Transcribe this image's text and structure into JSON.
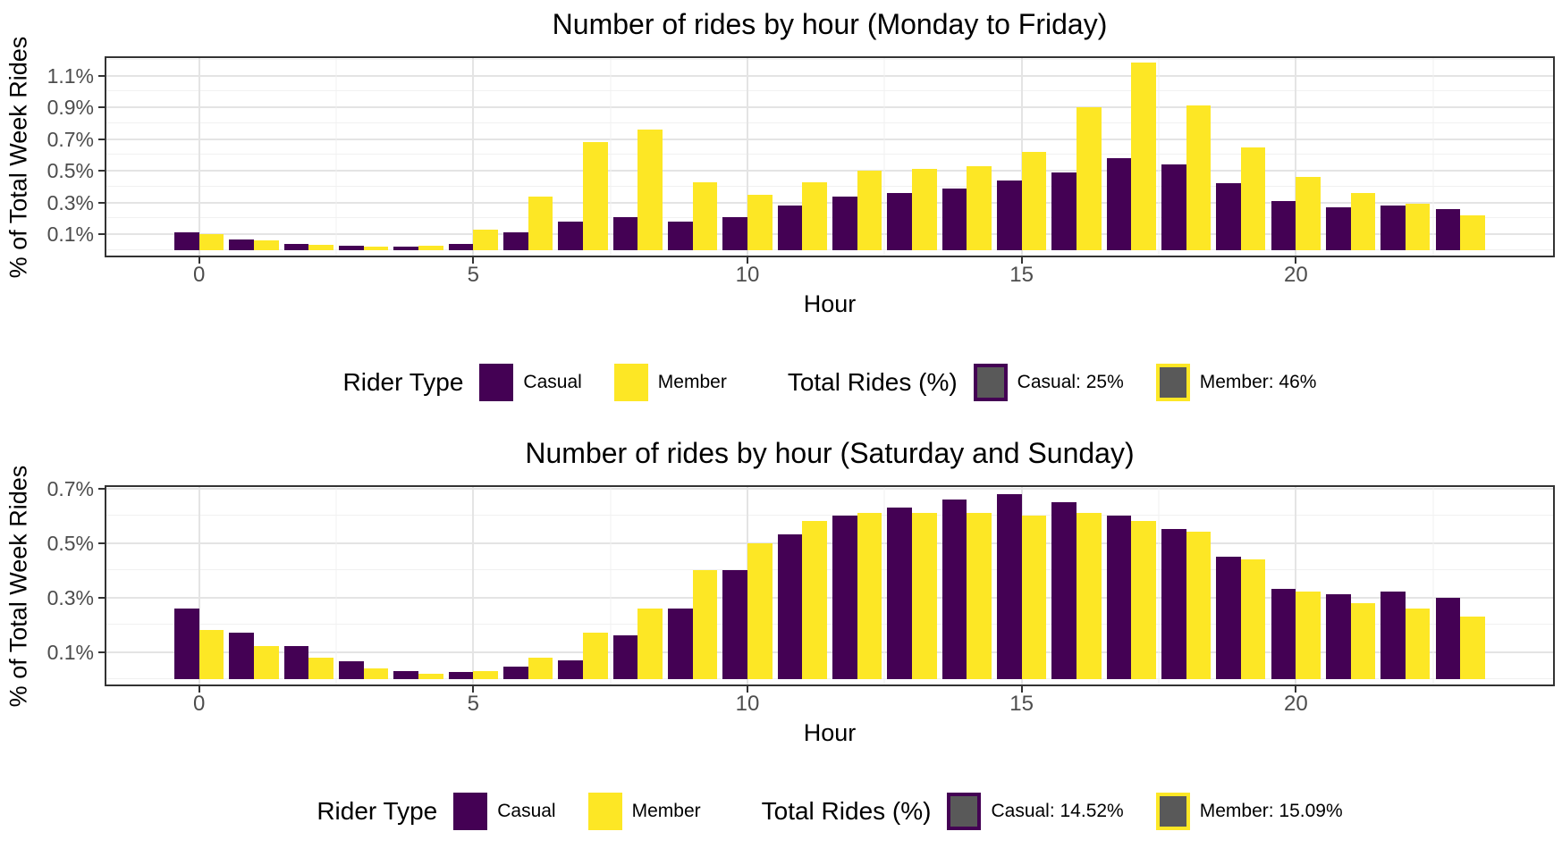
{
  "colors": {
    "casual": "#440154",
    "member": "#FDE725",
    "legend_swatch_fill": "#595959",
    "grid_major": "#e4e4e4",
    "grid_minor": "#f1f1f1",
    "panel_border": "#333333",
    "axis_text": "#4d4d4d",
    "title_text": "#000000"
  },
  "chart_data": [
    {
      "type": "bar",
      "title": "Number of rides by hour (Monday to Friday)",
      "xlabel": "Hour",
      "ylabel": "% of Total Week Rides",
      "x": [
        0,
        1,
        2,
        3,
        4,
        5,
        6,
        7,
        8,
        9,
        10,
        11,
        12,
        13,
        14,
        15,
        16,
        17,
        18,
        19,
        20,
        21,
        22,
        23
      ],
      "x_ticks": [
        0,
        5,
        10,
        15,
        20
      ],
      "y_ticks": [
        0.1,
        0.3,
        0.5,
        0.7,
        0.9,
        1.1
      ],
      "y_unit": "%",
      "ylim": [
        0,
        1.21
      ],
      "grid": true,
      "legend_position": "bottom",
      "series": [
        {
          "name": "Casual",
          "values": [
            0.11,
            0.07,
            0.04,
            0.03,
            0.025,
            0.04,
            0.11,
            0.18,
            0.21,
            0.18,
            0.21,
            0.28,
            0.34,
            0.36,
            0.39,
            0.44,
            0.49,
            0.58,
            0.54,
            0.42,
            0.31,
            0.27,
            0.28,
            0.26
          ]
        },
        {
          "name": "Member",
          "values": [
            0.1,
            0.06,
            0.035,
            0.025,
            0.03,
            0.13,
            0.34,
            0.68,
            0.76,
            0.43,
            0.35,
            0.43,
            0.5,
            0.51,
            0.53,
            0.62,
            0.9,
            1.18,
            0.91,
            0.65,
            0.46,
            0.36,
            0.29,
            0.22
          ]
        }
      ],
      "legend": {
        "rider_type_title": "Rider Type",
        "casual_label": "Casual",
        "member_label": "Member",
        "total_title": "Total Rides (%)",
        "total_casual_label": "Casual: 25%",
        "total_member_label": "Member: 46%"
      }
    },
    {
      "type": "bar",
      "title": "Number of rides by hour (Saturday and Sunday)",
      "xlabel": "Hour",
      "ylabel": "% of Total Week Rides",
      "x": [
        0,
        1,
        2,
        3,
        4,
        5,
        6,
        7,
        8,
        9,
        10,
        11,
        12,
        13,
        14,
        15,
        16,
        17,
        18,
        19,
        20,
        21,
        22,
        23
      ],
      "x_ticks": [
        0,
        5,
        10,
        15,
        20
      ],
      "y_ticks": [
        0.1,
        0.3,
        0.5,
        0.7
      ],
      "y_unit": "%",
      "ylim": [
        0,
        0.705
      ],
      "grid": true,
      "legend_position": "bottom",
      "series": [
        {
          "name": "Casual",
          "values": [
            0.26,
            0.17,
            0.12,
            0.065,
            0.03,
            0.025,
            0.045,
            0.07,
            0.16,
            0.26,
            0.4,
            0.53,
            0.6,
            0.63,
            0.66,
            0.68,
            0.65,
            0.6,
            0.55,
            0.45,
            0.33,
            0.31,
            0.32,
            0.3
          ]
        },
        {
          "name": "Member",
          "values": [
            0.18,
            0.12,
            0.08,
            0.04,
            0.02,
            0.03,
            0.08,
            0.17,
            0.26,
            0.4,
            0.5,
            0.58,
            0.61,
            0.61,
            0.61,
            0.6,
            0.61,
            0.58,
            0.54,
            0.44,
            0.32,
            0.28,
            0.26,
            0.23
          ]
        }
      ],
      "legend": {
        "rider_type_title": "Rider Type",
        "casual_label": "Casual",
        "member_label": "Member",
        "total_title": "Total Rides (%)",
        "total_casual_label": "Casual: 14.52%",
        "total_member_label": "Member: 15.09%"
      }
    }
  ]
}
